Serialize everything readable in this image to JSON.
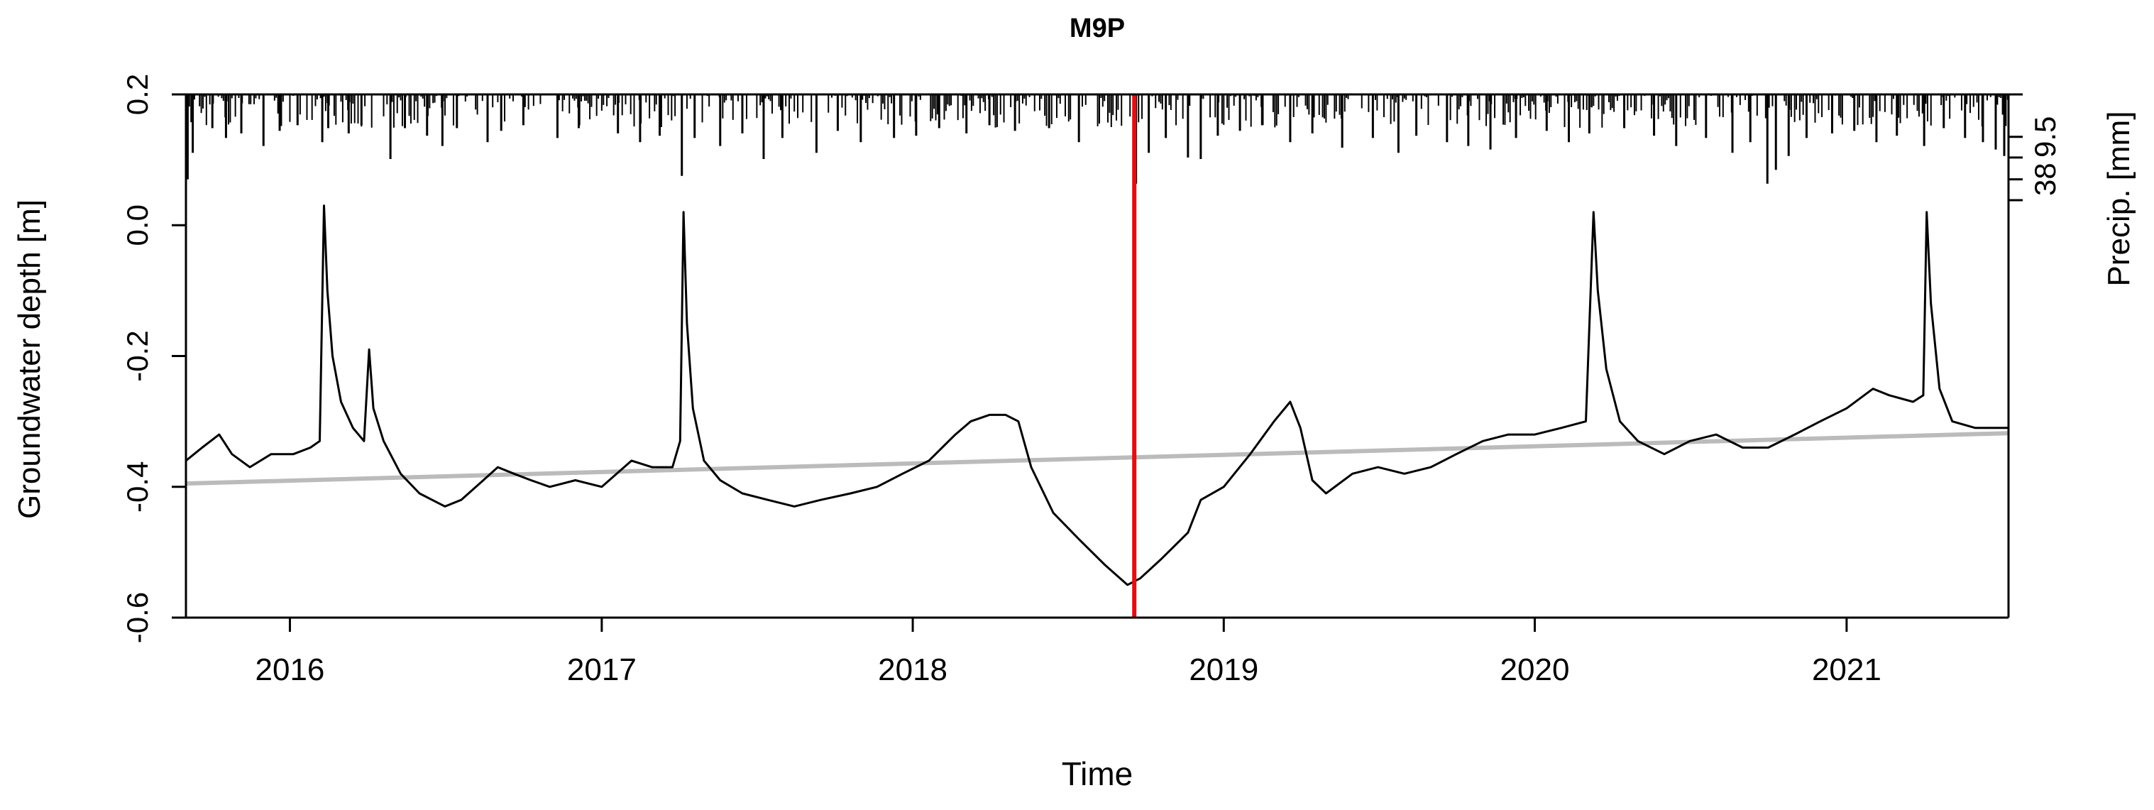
{
  "chart_data": {
    "type": "line",
    "title": "M9P",
    "xlabel": "Time",
    "ylabel": "Groundwater depth [m]",
    "y2label": "Precip. [mm]",
    "xlim": [
      "2015-09-01",
      "2021-07-10"
    ],
    "ylim": [
      -0.6,
      0.2
    ],
    "x_ticks": [
      {
        "label": "2016",
        "date": "2016-01-01"
      },
      {
        "label": "2017",
        "date": "2017-01-01"
      },
      {
        "label": "2018",
        "date": "2018-01-01"
      },
      {
        "label": "2019",
        "date": "2019-01-01"
      },
      {
        "label": "2020",
        "date": "2020-01-01"
      },
      {
        "label": "2021",
        "date": "2021-01-01"
      }
    ],
    "y_ticks": [
      {
        "label": "-0.6",
        "value": -0.6
      },
      {
        "label": "-0.4",
        "value": -0.4
      },
      {
        "label": "-0.2",
        "value": -0.2
      },
      {
        "label": "0.0",
        "value": 0.0
      },
      {
        "label": "0.2",
        "value": 0.2
      }
    ],
    "y2_ticks": [
      {
        "label": "9.5",
        "value": 9.5
      },
      {
        "label": "38",
        "value": 38
      }
    ],
    "y2_minor_ticks": [
      0,
      21,
      59
    ],
    "precip_axis_scale": "sqrt",
    "series": [
      {
        "color": "#000000",
        "points": [
          [
            "2015-09-01",
            -0.36
          ],
          [
            "2015-09-20",
            -0.34
          ],
          [
            "2015-10-10",
            -0.32
          ],
          [
            "2015-10-25",
            -0.35
          ],
          [
            "2015-11-15",
            -0.37
          ],
          [
            "2015-12-10",
            -0.35
          ],
          [
            "2016-01-05",
            -0.35
          ],
          [
            "2016-01-25",
            -0.34
          ],
          [
            "2016-02-05",
            -0.33
          ],
          [
            "2016-02-10",
            0.03
          ],
          [
            "2016-02-14",
            -0.1
          ],
          [
            "2016-02-20",
            -0.2
          ],
          [
            "2016-03-01",
            -0.27
          ],
          [
            "2016-03-15",
            -0.31
          ],
          [
            "2016-03-28",
            -0.33
          ],
          [
            "2016-04-03",
            -0.19
          ],
          [
            "2016-04-08",
            -0.28
          ],
          [
            "2016-04-20",
            -0.33
          ],
          [
            "2016-05-10",
            -0.38
          ],
          [
            "2016-06-01",
            -0.41
          ],
          [
            "2016-07-01",
            -0.43
          ],
          [
            "2016-07-20",
            -0.42
          ],
          [
            "2016-08-15",
            -0.39
          ],
          [
            "2016-09-01",
            -0.37
          ],
          [
            "2016-09-20",
            -0.38
          ],
          [
            "2016-10-10",
            -0.39
          ],
          [
            "2016-11-01",
            -0.4
          ],
          [
            "2016-12-01",
            -0.39
          ],
          [
            "2017-01-01",
            -0.4
          ],
          [
            "2017-02-05",
            -0.36
          ],
          [
            "2017-03-01",
            -0.37
          ],
          [
            "2017-03-25",
            -0.37
          ],
          [
            "2017-04-03",
            -0.33
          ],
          [
            "2017-04-07",
            0.02
          ],
          [
            "2017-04-11",
            -0.15
          ],
          [
            "2017-04-18",
            -0.28
          ],
          [
            "2017-05-01",
            -0.36
          ],
          [
            "2017-05-20",
            -0.39
          ],
          [
            "2017-06-15",
            -0.41
          ],
          [
            "2017-07-15",
            -0.42
          ],
          [
            "2017-08-15",
            -0.43
          ],
          [
            "2017-09-15",
            -0.42
          ],
          [
            "2017-10-20",
            -0.41
          ],
          [
            "2017-11-20",
            -0.4
          ],
          [
            "2017-12-20",
            -0.38
          ],
          [
            "2018-01-20",
            -0.36
          ],
          [
            "2018-02-20",
            -0.32
          ],
          [
            "2018-03-10",
            -0.3
          ],
          [
            "2018-04-01",
            -0.29
          ],
          [
            "2018-04-20",
            -0.29
          ],
          [
            "2018-05-05",
            -0.3
          ],
          [
            "2018-05-20",
            -0.37
          ],
          [
            "2018-06-15",
            -0.44
          ],
          [
            "2018-07-15",
            -0.48
          ],
          [
            "2018-08-15",
            -0.52
          ],
          [
            "2018-09-10",
            -0.55
          ],
          [
            "2018-09-25",
            -0.54
          ],
          [
            "2018-10-20",
            -0.51
          ],
          [
            "2018-11-20",
            -0.47
          ],
          [
            "2018-12-05",
            -0.42
          ],
          [
            "2019-01-01",
            -0.4
          ],
          [
            "2019-02-01",
            -0.35
          ],
          [
            "2019-03-01",
            -0.3
          ],
          [
            "2019-03-20",
            -0.27
          ],
          [
            "2019-04-01",
            -0.31
          ],
          [
            "2019-04-15",
            -0.39
          ],
          [
            "2019-05-01",
            -0.41
          ],
          [
            "2019-06-01",
            -0.38
          ],
          [
            "2019-07-01",
            -0.37
          ],
          [
            "2019-08-01",
            -0.38
          ],
          [
            "2019-09-01",
            -0.37
          ],
          [
            "2019-10-01",
            -0.35
          ],
          [
            "2019-11-01",
            -0.33
          ],
          [
            "2019-12-01",
            -0.32
          ],
          [
            "2020-01-01",
            -0.32
          ],
          [
            "2020-02-01",
            -0.31
          ],
          [
            "2020-03-01",
            -0.3
          ],
          [
            "2020-03-10",
            0.02
          ],
          [
            "2020-03-15",
            -0.1
          ],
          [
            "2020-03-25",
            -0.22
          ],
          [
            "2020-04-10",
            -0.3
          ],
          [
            "2020-05-01",
            -0.33
          ],
          [
            "2020-06-01",
            -0.35
          ],
          [
            "2020-07-01",
            -0.33
          ],
          [
            "2020-08-01",
            -0.32
          ],
          [
            "2020-09-01",
            -0.34
          ],
          [
            "2020-10-01",
            -0.34
          ],
          [
            "2020-11-01",
            -0.32
          ],
          [
            "2020-12-01",
            -0.3
          ],
          [
            "2021-01-01",
            -0.28
          ],
          [
            "2021-02-01",
            -0.25
          ],
          [
            "2021-02-20",
            -0.26
          ],
          [
            "2021-03-20",
            -0.27
          ],
          [
            "2021-04-01",
            -0.26
          ],
          [
            "2021-04-05",
            0.02
          ],
          [
            "2021-04-10",
            -0.12
          ],
          [
            "2021-04-20",
            -0.25
          ],
          [
            "2021-05-05",
            -0.3
          ],
          [
            "2021-06-01",
            -0.31
          ],
          [
            "2021-07-10",
            -0.31
          ]
        ]
      },
      {
        "color": "#bbbbbb",
        "points": [
          [
            "2015-09-01",
            -0.395
          ],
          [
            "2021-07-10",
            -0.318
          ]
        ]
      }
    ],
    "vertical_line": {
      "date": "2018-09-18",
      "color": "#e01010"
    },
    "precipitation_bars": {
      "color": "#000000",
      "hanging_from_top": true,
      "events": [
        [
          "2015-09-03",
          38
        ],
        [
          "2015-09-09",
          18
        ],
        [
          "2015-10-02",
          6
        ],
        [
          "2015-10-18",
          10
        ],
        [
          "2015-11-05",
          8
        ],
        [
          "2015-12-01",
          14
        ],
        [
          "2015-12-20",
          7
        ],
        [
          "2016-01-10",
          5
        ],
        [
          "2016-02-08",
          12
        ],
        [
          "2016-02-15",
          6
        ],
        [
          "2016-03-10",
          8
        ],
        [
          "2016-03-25",
          5
        ],
        [
          "2016-04-28",
          22
        ],
        [
          "2016-05-15",
          6
        ],
        [
          "2016-06-10",
          9
        ],
        [
          "2016-06-28",
          14
        ],
        [
          "2016-07-15",
          6
        ],
        [
          "2016-08-20",
          12
        ],
        [
          "2016-09-05",
          7
        ],
        [
          "2016-10-01",
          5
        ],
        [
          "2016-11-10",
          10
        ],
        [
          "2016-12-05",
          6
        ],
        [
          "2017-01-20",
          8
        ],
        [
          "2017-02-15",
          12
        ],
        [
          "2017-03-10",
          9
        ],
        [
          "2017-04-05",
          35
        ],
        [
          "2017-04-20",
          10
        ],
        [
          "2017-05-20",
          14
        ],
        [
          "2017-06-15",
          8
        ],
        [
          "2017-07-10",
          22
        ],
        [
          "2017-08-01",
          10
        ],
        [
          "2017-09-10",
          18
        ],
        [
          "2017-10-05",
          7
        ],
        [
          "2017-11-01",
          12
        ],
        [
          "2017-12-10",
          10
        ],
        [
          "2018-01-05",
          9
        ],
        [
          "2018-02-01",
          6
        ],
        [
          "2018-03-05",
          8
        ],
        [
          "2018-04-01",
          5
        ],
        [
          "2018-05-01",
          7
        ],
        [
          "2018-06-10",
          6
        ],
        [
          "2018-07-15",
          12
        ],
        [
          "2018-09-20",
          42
        ],
        [
          "2018-10-05",
          18
        ],
        [
          "2018-10-25",
          10
        ],
        [
          "2018-11-20",
          21
        ],
        [
          "2018-12-05",
          22
        ],
        [
          "2018-12-25",
          9
        ],
        [
          "2019-01-20",
          7
        ],
        [
          "2019-02-15",
          5
        ],
        [
          "2019-03-20",
          12
        ],
        [
          "2019-04-15",
          8
        ],
        [
          "2019-05-20",
          15
        ],
        [
          "2019-06-25",
          10
        ],
        [
          "2019-07-25",
          18
        ],
        [
          "2019-08-15",
          9
        ],
        [
          "2019-09-20",
          12
        ],
        [
          "2019-10-15",
          14
        ],
        [
          "2019-11-10",
          16
        ],
        [
          "2019-12-10",
          10
        ],
        [
          "2020-01-15",
          7
        ],
        [
          "2020-02-10",
          12
        ],
        [
          "2020-03-05",
          8
        ],
        [
          "2020-04-15",
          6
        ],
        [
          "2020-05-20",
          9
        ],
        [
          "2020-06-15",
          14
        ],
        [
          "2020-07-20",
          10
        ],
        [
          "2020-08-20",
          18
        ],
        [
          "2020-09-10",
          12
        ],
        [
          "2020-09-30",
          42
        ],
        [
          "2020-10-10",
          30
        ],
        [
          "2020-10-25",
          20
        ],
        [
          "2020-11-15",
          10
        ],
        [
          "2020-12-15",
          8
        ],
        [
          "2021-01-10",
          7
        ],
        [
          "2021-02-05",
          12
        ],
        [
          "2021-03-01",
          9
        ],
        [
          "2021-04-02",
          14
        ],
        [
          "2021-04-25",
          6
        ],
        [
          "2021-05-20",
          10
        ],
        [
          "2021-06-10",
          12
        ],
        [
          "2021-06-25",
          16
        ],
        [
          "2021-07-05",
          20
        ]
      ]
    },
    "grid": false,
    "legend": "none"
  }
}
